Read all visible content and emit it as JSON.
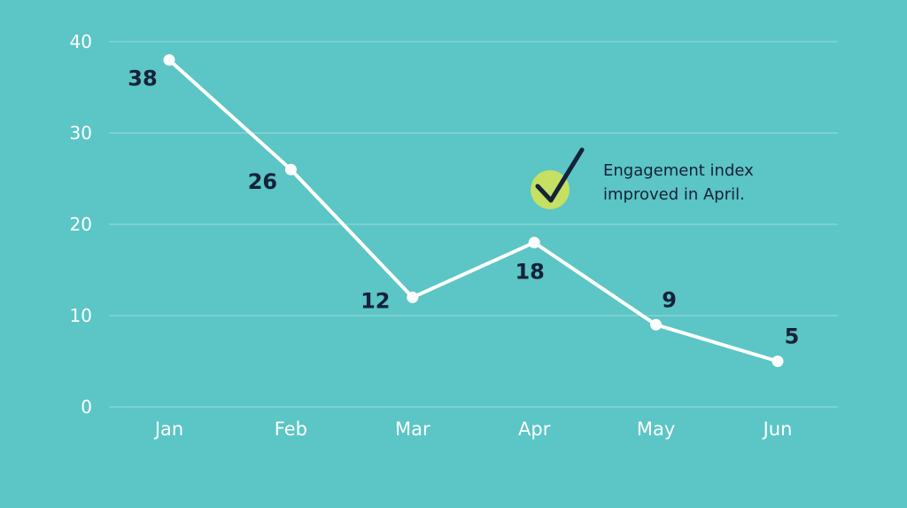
{
  "chart_data": {
    "type": "line",
    "categories": [
      "Jan",
      "Feb",
      "Mar",
      "Apr",
      "May",
      "Jun"
    ],
    "values": [
      38,
      26,
      12,
      18,
      9,
      5
    ],
    "data_labels": [
      "38",
      "26",
      "12",
      "18",
      "9",
      "5"
    ],
    "y_ticks": [
      "0",
      "10",
      "20",
      "30",
      "40"
    ],
    "ylim": [
      0,
      40
    ],
    "grid": true,
    "title": "",
    "xlabel": "",
    "ylabel": "",
    "annotation": {
      "line1": "Engagement index",
      "line2": "improved in April.",
      "icon": "check-icon",
      "category": "Apr"
    },
    "colors": {
      "background": "#5cc5c5",
      "line": "#ffffff",
      "gridline": "#8fd8d8",
      "label_text": "#16213a",
      "check_circle": "#c5e063",
      "check_mark": "#16213a"
    }
  }
}
